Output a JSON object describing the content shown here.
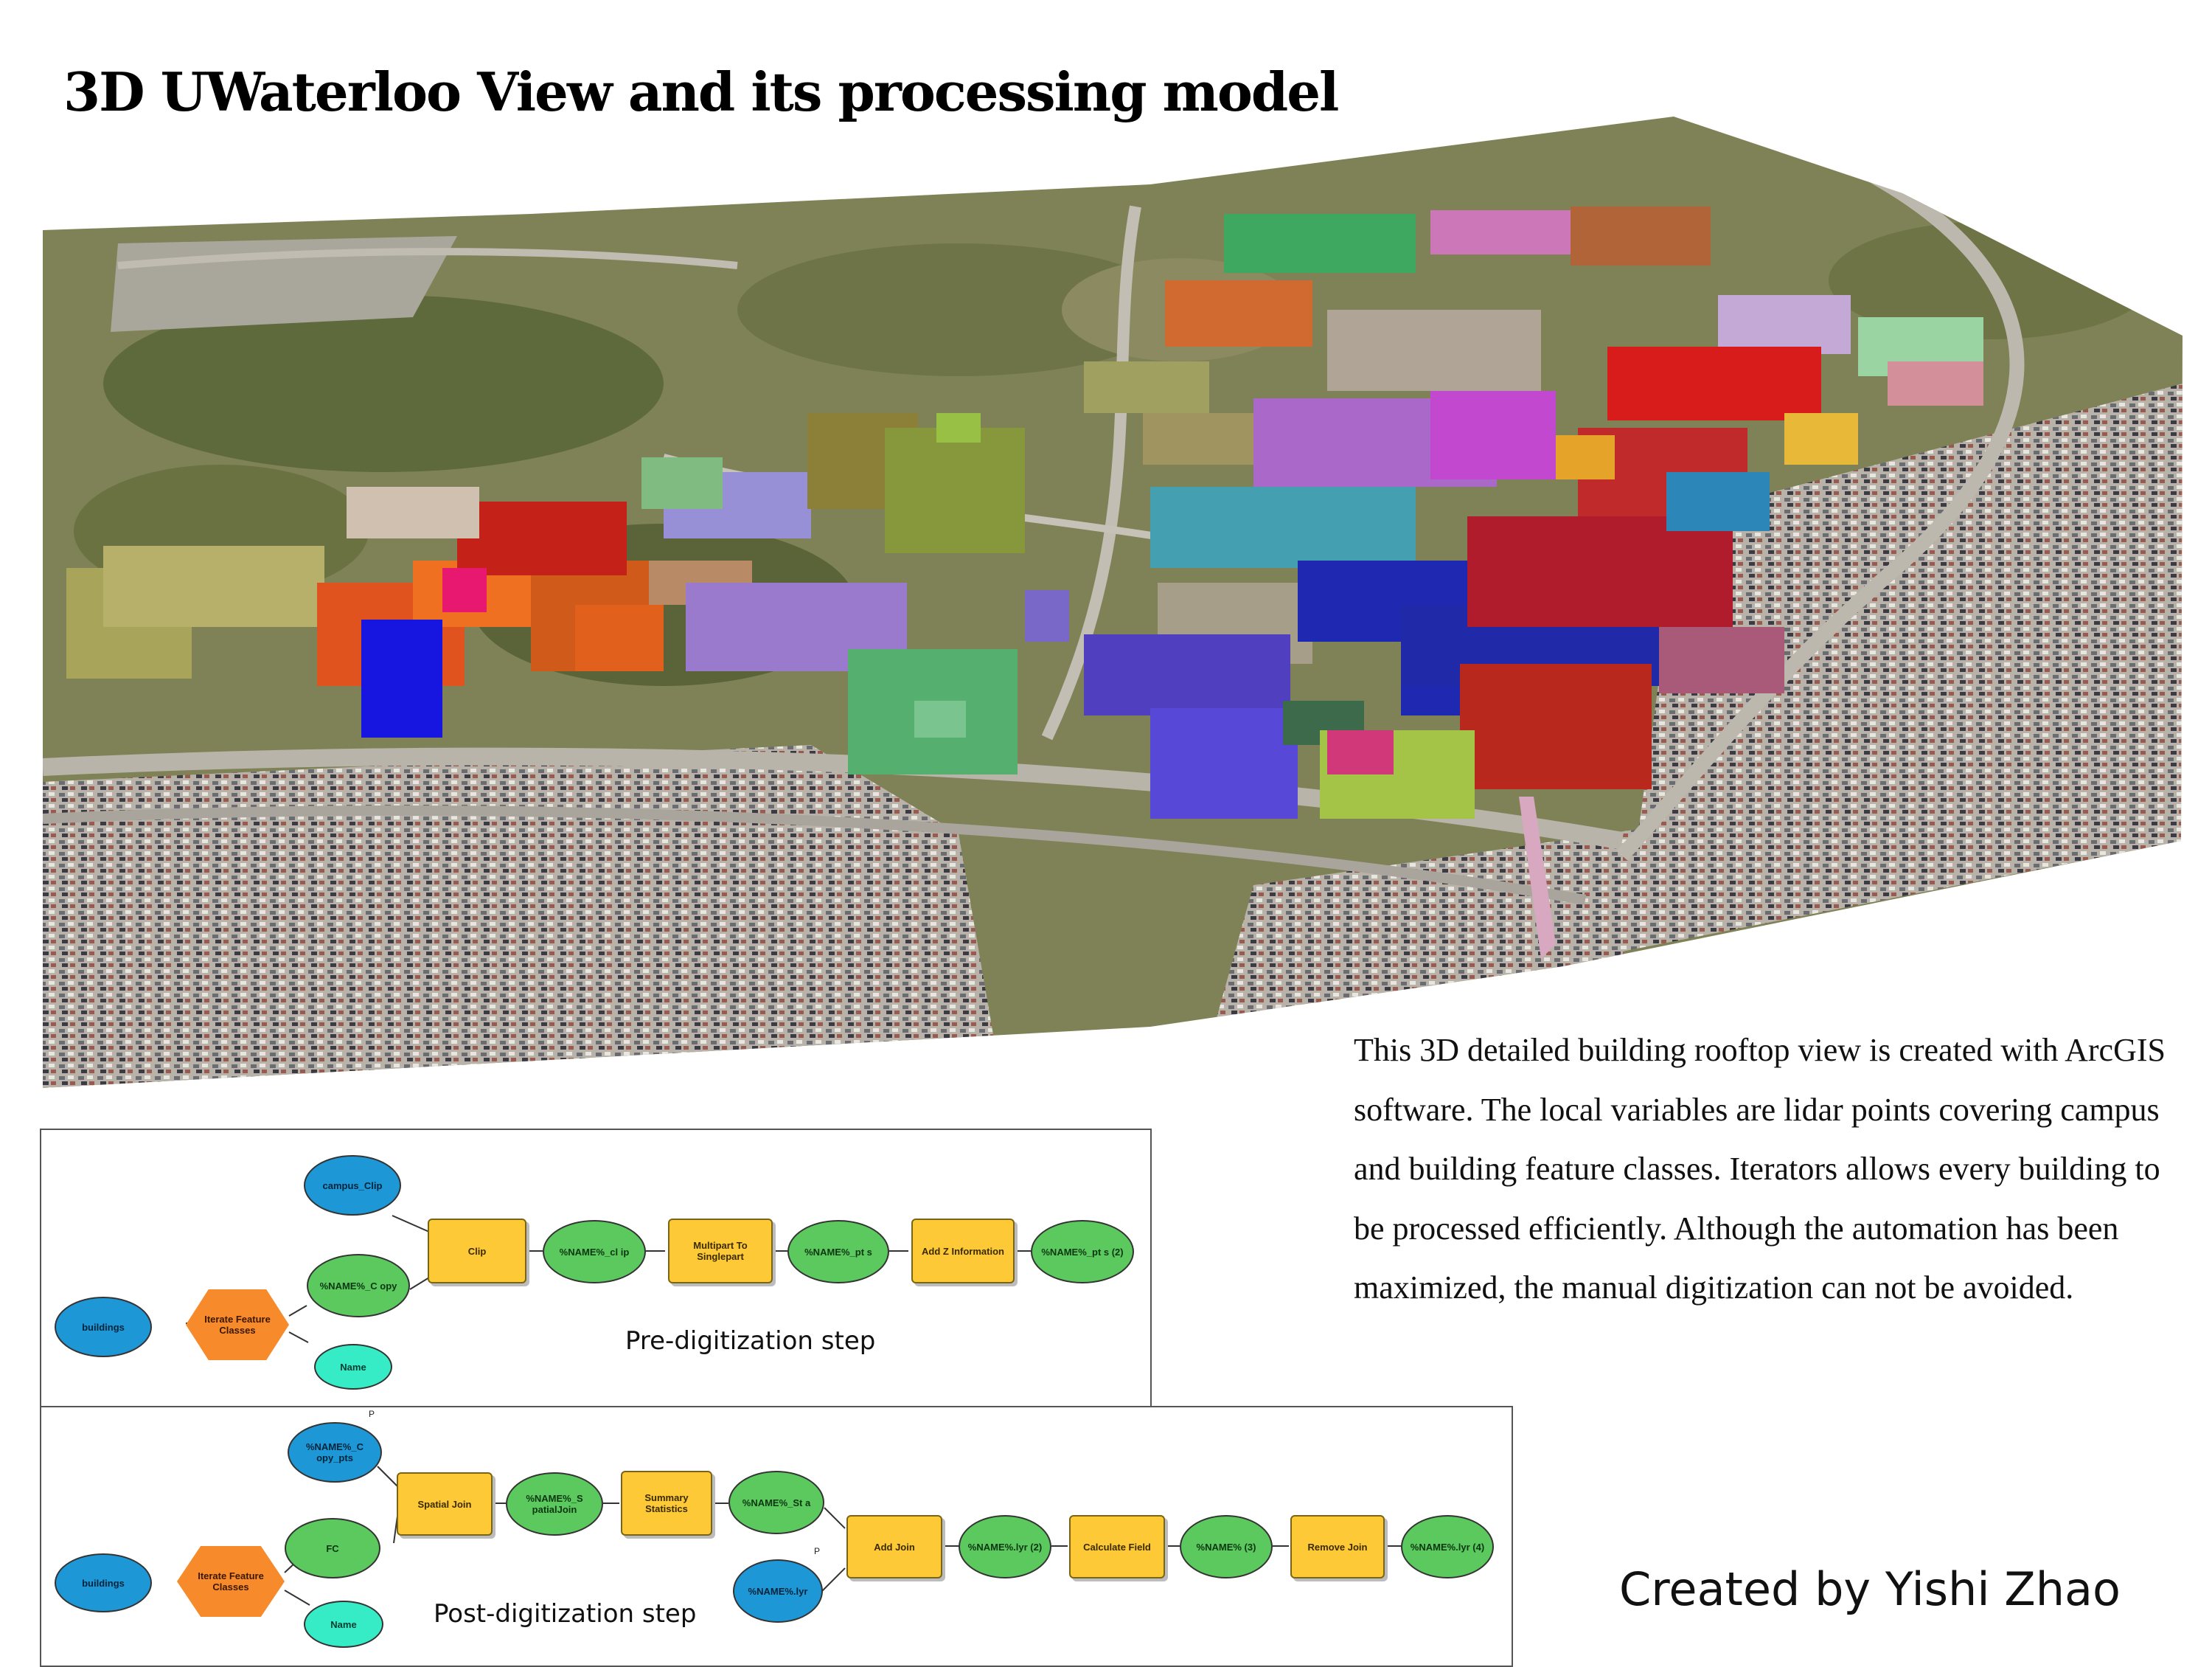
{
  "title": "3D UWaterloo View and its processing model",
  "description": "This 3D detailed building rooftop view is created with ArcGIS software. The local variables are lidar points covering campus and building feature classes. Iterators allows every building to be processed efficiently. Although the automation has been maximized, the manual digitization can not be avoided.",
  "credit": "Created by Yishi Zhao",
  "pre_model": {
    "label": "Pre-digitization step",
    "nodes": {
      "campus_clip": "campus_Clip",
      "buildings": "buildings",
      "iterate": "Iterate Feature Classes",
      "name_copy": "%NAME%_C opy",
      "name": "Name",
      "clip": "Clip",
      "name_clip": "%NAME%_cl ip",
      "multipart": "Multipart To Singlepart",
      "name_pts": "%NAME%_pt s",
      "add_z": "Add Z Information",
      "name_pts2": "%NAME%_pt s (2)"
    }
  },
  "post_model": {
    "label": "Post-digitization step",
    "p_marker": "P",
    "nodes": {
      "copy_pts": "%NAME%_C opy_pts",
      "buildings": "buildings",
      "iterate": "Iterate Feature Classes",
      "fc": "FC",
      "name": "Name",
      "spatial_join": "Spatial Join",
      "name_spatialjoin": "%NAME%_S patialJoin",
      "summary": "Summary Statistics",
      "name_sta": "%NAME%_St a",
      "name_lyr": "%NAME%.lyr",
      "add_join": "Add Join",
      "name_lyr2": "%NAME%.lyr (2)",
      "calc_field": "Calculate Field",
      "name3": "%NAME% (3)",
      "remove_join": "Remove Join",
      "name_lyr4": "%NAME%.lyr (4)"
    }
  },
  "colors": {
    "data_blue": "#1e97d6",
    "data_green": "#5bc95e",
    "tool_yellow": "#fdc936",
    "iterator_orange": "#f78a2b",
    "param_teal": "#36ecc6"
  }
}
